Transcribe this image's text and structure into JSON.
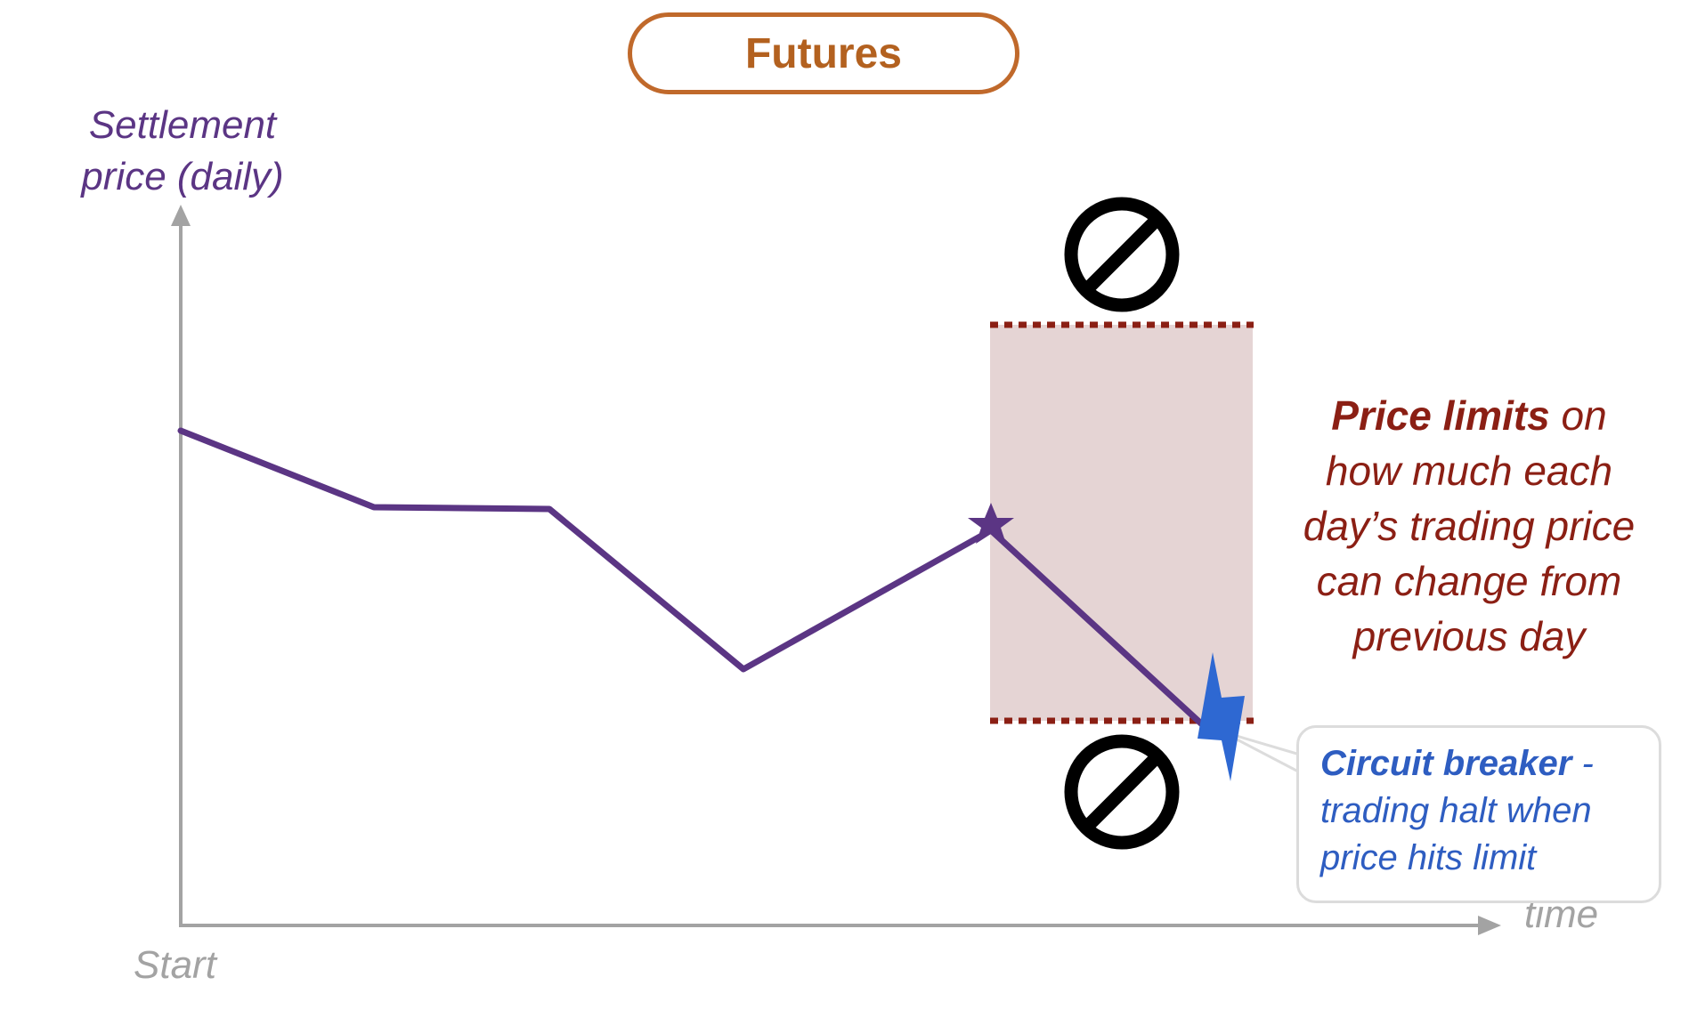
{
  "title": "Futures",
  "y_axis_label": [
    "Settlement",
    "price (daily)"
  ],
  "x_axis_start_label": "Start",
  "x_axis_end_label": "time",
  "price_limits_note": {
    "bold": "Price limits",
    "rest_first_line": " on",
    "lines": [
      "how much each",
      "day’s trading price",
      "can change from",
      "previous day"
    ]
  },
  "circuit_breaker_note": {
    "bold": "Circuit breaker",
    "rest_first_line": " -",
    "lines": [
      "trading halt when",
      "price hits limit"
    ]
  },
  "icons": [
    "no-trading-icon-upper",
    "no-trading-icon-lower",
    "star-marker-icon",
    "lightning-bolt-icon"
  ],
  "colors": {
    "title": "#b3611f",
    "price_line": "#5b3584",
    "limits": "#8b1f14",
    "limit_band": "#e5d4d4",
    "circuit_breaker": "#2e5dc1",
    "axis": "#a3a3a3"
  }
}
